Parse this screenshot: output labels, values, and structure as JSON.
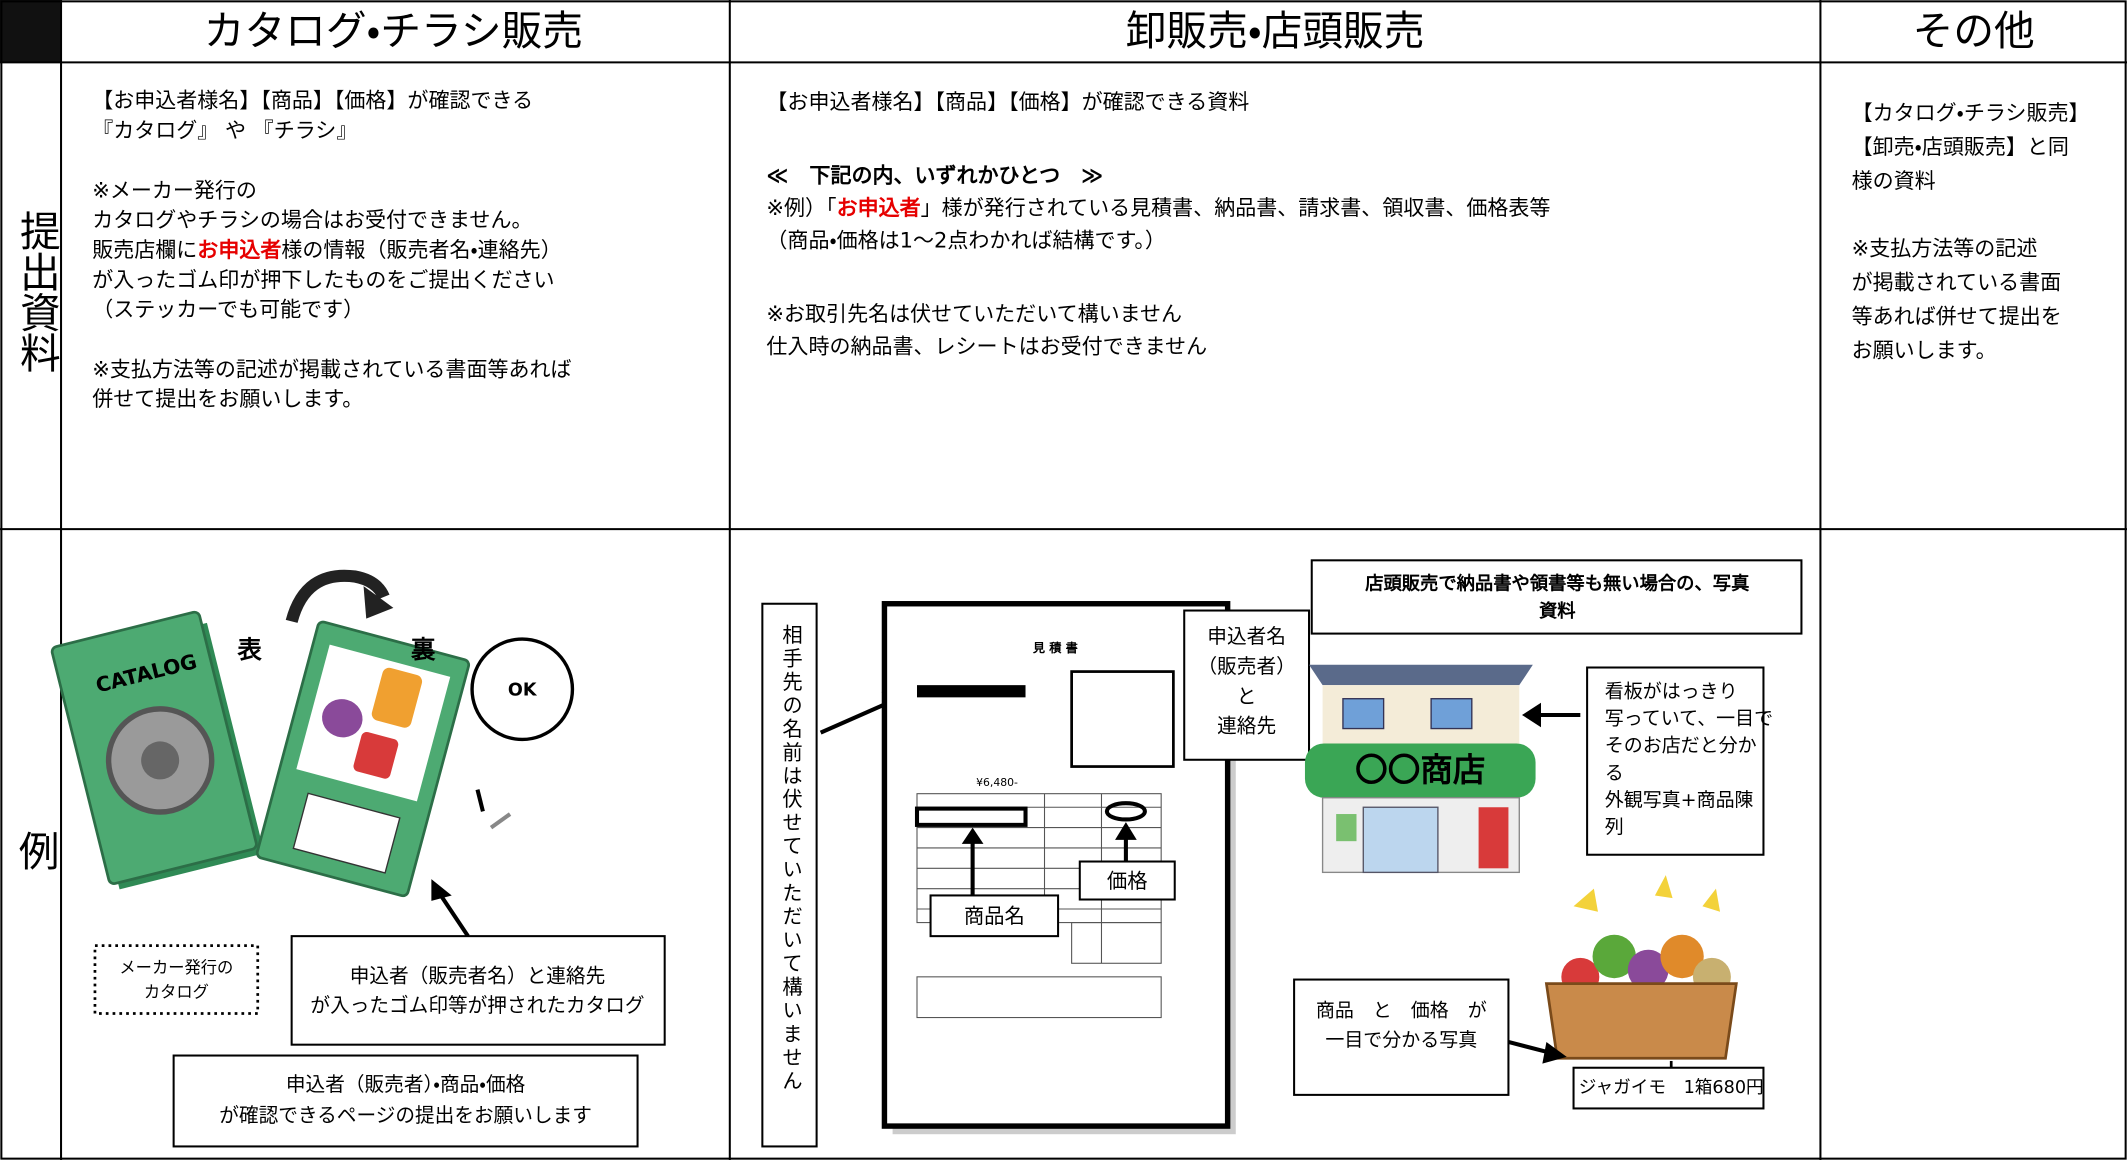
{
  "header": {
    "columns": [
      "カタログ・チラシ販売",
      "卸販売・店頭販売",
      "その他"
    ]
  },
  "rows": [
    "提出資料",
    "例"
  ],
  "documents": {
    "catalog": [
      [
        "【お申込者様名】【商品】【価格】が確認できる",
        "『カタログ』 や 『チラシ』"
      ],
      [
        "※メーカー発行の",
        " カタログやチラシの場合はお受付できません。",
        [
          "販売店欄に",
          {
            "text": "お申込者",
            "color": "#e60000",
            "bold": true
          },
          "様の情報（販売者名・連絡先）"
        ],
        "が入ったゴム印が押下したものをご提出ください",
        "（ステッカーでも可能です）"
      ],
      [
        "※支払方法等の記述が掲載されている書面等あれば",
        "併せて提出をお願いします。"
      ]
    ],
    "wholesale": [
      [
        "【お申込者様名】【商品】【価格】が確認できる資料"
      ],
      [
        {
          "text": "≪　下記の内、いずれかひとつ　≫",
          "bold": true
        },
        [
          "※例）「",
          {
            "text": "お申込者",
            "color": "#e60000",
            "bold": true
          },
          "」様が発行されている見積書、納品書、請求書、領収書、価格表等"
        ],
        "（商品・価格は1～2点わかれば結構です。）"
      ],
      [
        "※お取引先名は伏せていただいて構いません",
        "仕入時の納品書、レシートはお受付できません"
      ]
    ],
    "other": [
      [
        "【カタログ・チラシ販売】",
        "【卸売・店頭販売】と同",
        "様の資料"
      ],
      [
        "※支払方法等の記述",
        "が掲載されている書面",
        "等あれば併せて提出を",
        "お願いします。"
      ]
    ]
  },
  "examples": {
    "catalog": {
      "cover": "CATALOG",
      "front": "表",
      "back": "裏",
      "ok": "OK",
      "maker_note": [
        "メーカー発行の",
        "カタログ"
      ],
      "stamp_note": [
        "申込者（販売者名）と連絡先",
        "が入ったゴム印等が押されたカタログ"
      ],
      "request": [
        "申込者（販売者）・商品・価格",
        "が確認できるページの提出をお願いします"
      ]
    },
    "wholesale": {
      "hidden_note": "相手先の名前は伏せていただいて構いません",
      "doc_title": "見 積 書",
      "doc_amount": "¥6,480-",
      "applicant": [
        "申込者名",
        "（販売者）",
        "と",
        "連絡先"
      ],
      "product": "商品名",
      "price": "価格",
      "photo_note": [
        "店頭販売で納品書や領書等も無い場合の、写真",
        "資料"
      ],
      "store_sign": "〇〇商店",
      "sign_note": [
        "看板がはっきり",
        "写っていて、一目で",
        "そのお店だと分か",
        "る",
        "外観写真+商品陳",
        "列"
      ],
      "photo_caption": [
        "商品　と　価格　が",
        "一目で分かる写真"
      ],
      "price_tag": "ジャガイモ　1箱680円"
    }
  }
}
